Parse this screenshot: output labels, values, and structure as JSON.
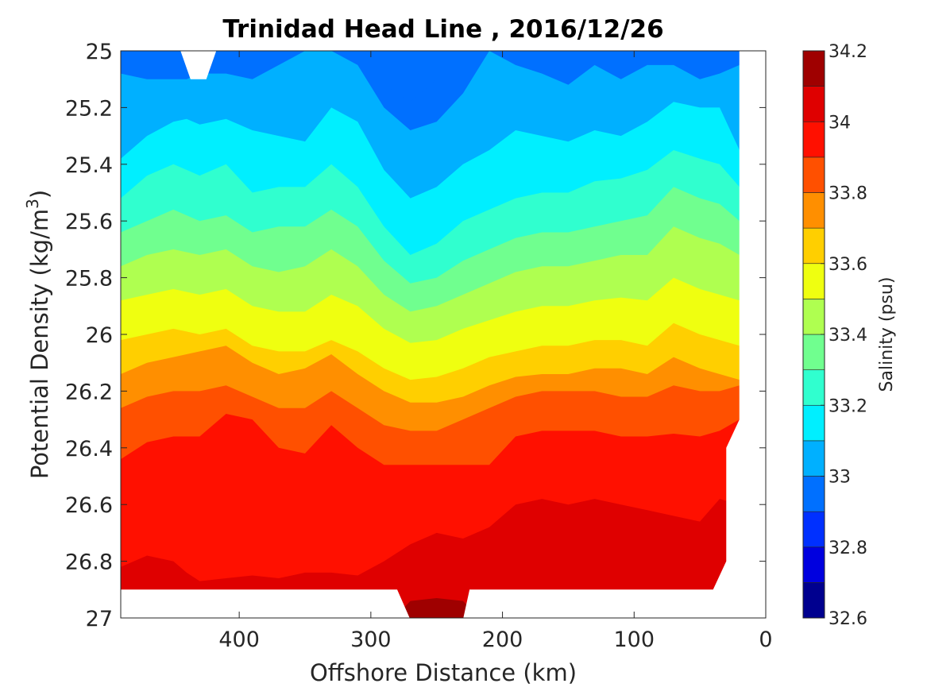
{
  "chart_data": {
    "type": "heatmap",
    "subtype": "filled-contour",
    "title": "Trinidad Head Line , 2016/12/26",
    "xlabel": "Offshore Distance (km)",
    "ylabel_main": "Potential Density (kg/m",
    "ylabel_sup": "3",
    "ylabel_close": ")",
    "x_axis": {
      "range": [
        490,
        0
      ],
      "reversed": true,
      "ticks": [
        400,
        300,
        200,
        100,
        0
      ]
    },
    "y_axis": {
      "range": [
        25,
        27
      ],
      "reversed": true,
      "ticks": [
        25,
        25.2,
        25.4,
        25.6,
        25.8,
        26,
        26.2,
        26.4,
        26.6,
        26.8,
        27
      ],
      "tick_labels": [
        "25",
        "25.2",
        "25.4",
        "25.6",
        "25.8",
        "26",
        "26.2",
        "26.4",
        "26.6",
        "26.8",
        "27"
      ]
    },
    "colorbar": {
      "label": "Salinity (psu)",
      "range": [
        32.6,
        34.2
      ],
      "ticks": [
        32.6,
        32.8,
        33,
        33.2,
        33.4,
        33.6,
        33.8,
        34,
        34.2
      ],
      "tick_labels": [
        "32.6",
        "32.8",
        "33",
        "33.2",
        "33.4",
        "33.6",
        "33.8",
        "34",
        "34.2"
      ],
      "levels": [
        32.6,
        32.7,
        32.8,
        32.9,
        33.0,
        33.1,
        33.2,
        33.3,
        33.4,
        33.5,
        33.6,
        33.7,
        33.8,
        33.9,
        34.0,
        34.1,
        34.2
      ],
      "colors": [
        "#00008f",
        "#0000df",
        "#0030ff",
        "#0070ff",
        "#00b0ff",
        "#00efff",
        "#30ffcf",
        "#70ff8f",
        "#afff50",
        "#efff10",
        "#ffcf00",
        "#ff8f00",
        "#ff5000",
        "#ff1000",
        "#df0000",
        "#9f0000"
      ]
    },
    "stations_x": [
      490,
      470,
      450,
      440,
      430,
      410,
      390,
      370,
      350,
      330,
      310,
      290,
      270,
      250,
      230,
      210,
      190,
      170,
      150,
      130,
      110,
      90,
      70,
      50,
      35,
      20
    ],
    "isohalines": [
      {
        "salinity": 32.9,
        "y": [
          null,
          null,
          null,
          null,
          null,
          null,
          null,
          null,
          null,
          null,
          25.0,
          25.12,
          25.18,
          25.1,
          25.0,
          null,
          null,
          null,
          null,
          null,
          null,
          null,
          null,
          null,
          null,
          null
        ]
      },
      {
        "salinity": 33.0,
        "y": [
          25.08,
          25.1,
          25.1,
          25.1,
          25.08,
          25.08,
          25.1,
          25.05,
          25.0,
          25.0,
          25.05,
          25.2,
          25.28,
          25.25,
          25.15,
          25.0,
          25.05,
          25.08,
          25.12,
          25.05,
          25.1,
          25.05,
          25.05,
          25.1,
          25.08,
          25.05
        ]
      },
      {
        "salinity": 33.1,
        "y": [
          25.38,
          25.3,
          25.25,
          25.24,
          25.26,
          25.24,
          25.28,
          25.3,
          25.32,
          25.2,
          25.25,
          25.42,
          25.52,
          25.48,
          25.4,
          25.35,
          25.28,
          25.3,
          25.32,
          25.28,
          25.3,
          25.25,
          25.18,
          25.2,
          25.2,
          25.35
        ]
      },
      {
        "salinity": 33.2,
        "y": [
          25.52,
          25.44,
          25.4,
          25.42,
          25.44,
          25.4,
          25.5,
          25.48,
          25.48,
          25.4,
          25.48,
          25.62,
          25.72,
          25.68,
          25.6,
          25.56,
          25.52,
          25.5,
          25.5,
          25.46,
          25.45,
          25.42,
          25.35,
          25.38,
          25.4,
          25.48
        ]
      },
      {
        "salinity": 33.3,
        "y": [
          25.64,
          25.6,
          25.56,
          25.58,
          25.6,
          25.58,
          25.64,
          25.62,
          25.62,
          25.56,
          25.62,
          25.74,
          25.82,
          25.8,
          25.74,
          25.7,
          25.66,
          25.64,
          25.64,
          25.62,
          25.6,
          25.58,
          25.48,
          25.52,
          25.54,
          25.6
        ]
      },
      {
        "salinity": 33.4,
        "y": [
          25.76,
          25.72,
          25.7,
          25.71,
          25.72,
          25.7,
          25.76,
          25.78,
          25.76,
          25.7,
          25.76,
          25.86,
          25.92,
          25.9,
          25.86,
          25.82,
          25.78,
          25.76,
          25.76,
          25.74,
          25.72,
          25.72,
          25.62,
          25.66,
          25.68,
          25.72
        ]
      },
      {
        "salinity": 33.5,
        "y": [
          25.88,
          25.86,
          25.84,
          25.85,
          25.86,
          25.84,
          25.9,
          25.92,
          25.92,
          25.86,
          25.9,
          25.98,
          26.03,
          26.02,
          25.98,
          25.95,
          25.92,
          25.9,
          25.9,
          25.88,
          25.87,
          25.88,
          25.8,
          25.84,
          25.86,
          25.88
        ]
      },
      {
        "salinity": 33.6,
        "y": [
          26.02,
          26.0,
          25.98,
          25.99,
          26.0,
          25.98,
          26.04,
          26.06,
          26.06,
          26.02,
          26.06,
          26.12,
          26.16,
          26.15,
          26.12,
          26.08,
          26.06,
          26.04,
          26.04,
          26.02,
          26.02,
          26.04,
          25.96,
          26.0,
          26.02,
          26.04
        ]
      },
      {
        "salinity": 33.7,
        "y": [
          26.14,
          26.1,
          26.08,
          26.07,
          26.06,
          26.04,
          26.1,
          26.14,
          26.12,
          26.07,
          26.14,
          26.2,
          26.24,
          26.24,
          26.22,
          26.18,
          26.15,
          26.14,
          26.14,
          26.12,
          26.12,
          26.14,
          26.08,
          26.12,
          26.14,
          26.16
        ]
      },
      {
        "salinity": 33.8,
        "y": [
          26.26,
          26.22,
          26.2,
          26.2,
          26.2,
          26.18,
          26.22,
          26.26,
          26.26,
          26.2,
          26.26,
          26.32,
          26.34,
          26.34,
          26.3,
          26.26,
          26.22,
          26.2,
          26.2,
          26.2,
          26.22,
          26.22,
          26.18,
          26.2,
          26.2,
          26.18
        ]
      },
      {
        "salinity": 33.9,
        "y": [
          26.44,
          26.38,
          26.36,
          26.36,
          26.36,
          26.28,
          26.3,
          26.4,
          26.42,
          26.32,
          26.4,
          26.46,
          26.46,
          26.46,
          26.46,
          26.46,
          26.36,
          26.34,
          26.34,
          26.34,
          26.36,
          26.36,
          26.35,
          26.36,
          26.34,
          26.3
        ]
      },
      {
        "salinity": 34.0,
        "y": [
          26.82,
          26.78,
          26.8,
          26.84,
          26.87,
          26.86,
          26.85,
          26.86,
          26.84,
          26.84,
          26.85,
          26.8,
          26.74,
          26.7,
          26.72,
          26.68,
          26.6,
          26.58,
          26.6,
          26.58,
          26.6,
          26.62,
          26.64,
          26.66,
          26.58,
          26.6
        ]
      },
      {
        "salinity": 34.1,
        "y": [
          null,
          null,
          null,
          null,
          null,
          null,
          null,
          null,
          null,
          null,
          null,
          null,
          26.94,
          26.93,
          26.94,
          null,
          null,
          null,
          null,
          null,
          null,
          null,
          null,
          null,
          null,
          null
        ]
      }
    ]
  }
}
